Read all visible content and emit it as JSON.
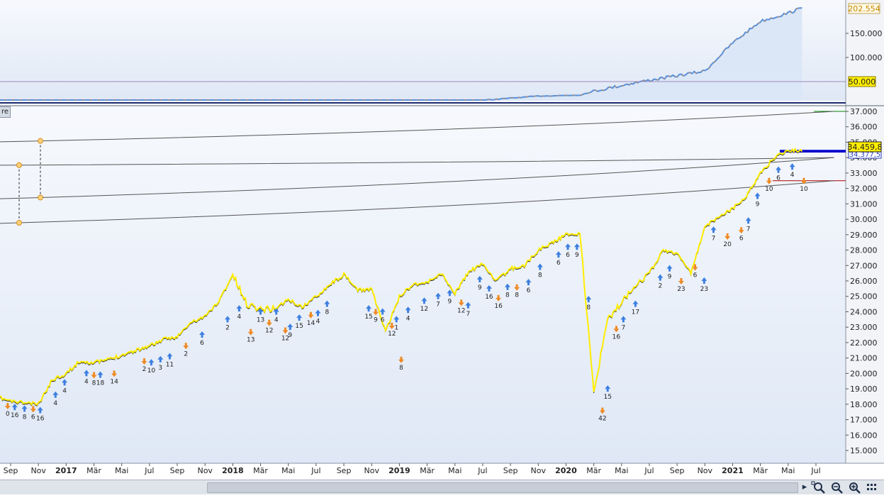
{
  "window": {
    "tab_label": "re"
  },
  "price_box": {
    "upper_current": "202.554",
    "upper_threshold": "50.000",
    "main_current": "34.459,8",
    "main_secondary": "34.377,5"
  },
  "toolbar": {
    "scroll_right_icon": "triangle-right-icon",
    "zoom_fit_icon": "zoom-fit-icon",
    "zoom_out_icon": "zoom-out-icon",
    "zoom_in_icon": "zoom-in-icon",
    "more_icon": "grid-icon"
  },
  "colors": {
    "price_line": "#ffee00",
    "upper_fill": "#dbe7f7",
    "upper_line": "#5b8fd6",
    "buy_arrow": "#3d7fe0",
    "sell_arrow": "#f08a24",
    "bg_top": "#f6f8fc",
    "bg_bottom": "#dfe8f6"
  },
  "chart_data": [
    {
      "type": "area",
      "name": "upper-panel",
      "y_ticks": [
        "150.000",
        "100.000",
        "50.000"
      ],
      "y_tick_values": [
        150000,
        100000,
        50000
      ],
      "threshold": 50000,
      "current": 202554,
      "x": [
        "2016-08",
        "2017-06",
        "2018-06",
        "2019-06",
        "2019-11",
        "2020-02",
        "2020-03",
        "2020-06",
        "2020-09",
        "2020-11",
        "2021-01",
        "2021-03",
        "2021-05",
        "2021-06"
      ],
      "values": [
        1200,
        3500,
        5000,
        9000,
        20000,
        22000,
        30000,
        48000,
        62000,
        72000,
        130000,
        175000,
        192000,
        202554
      ]
    },
    {
      "type": "line",
      "name": "price-panel",
      "y_ticks": [
        "37.000",
        "36.000",
        "35.000",
        "34.000",
        "33.000",
        "32.000",
        "31.000",
        "30.000",
        "29.000",
        "28.000",
        "27.000",
        "26.000",
        "25.000",
        "24.000",
        "23.000",
        "22.000",
        "21.000",
        "20.000",
        "19.000",
        "18.000",
        "17.000",
        "16.000",
        "15.000"
      ],
      "y_tick_values": [
        37000,
        36000,
        35000,
        34000,
        33000,
        32000,
        31000,
        30000,
        29000,
        28000,
        27000,
        26000,
        25000,
        24000,
        23000,
        22000,
        21000,
        20000,
        19000,
        18000,
        17000,
        16000,
        15000
      ],
      "x_labels": [
        {
          "label": "Sep",
          "bold": false
        },
        {
          "label": "Nov",
          "bold": false
        },
        {
          "label": "2017",
          "bold": true
        },
        {
          "label": "Mär",
          "bold": false
        },
        {
          "label": "Mai",
          "bold": false
        },
        {
          "label": "Jul",
          "bold": false
        },
        {
          "label": "Sep",
          "bold": false
        },
        {
          "label": "Nov",
          "bold": false
        },
        {
          "label": "2018",
          "bold": true
        },
        {
          "label": "Mär",
          "bold": false
        },
        {
          "label": "Mai",
          "bold": false
        },
        {
          "label": "Jul",
          "bold": false
        },
        {
          "label": "Sep",
          "bold": false
        },
        {
          "label": "Nov",
          "bold": false
        },
        {
          "label": "2019",
          "bold": true
        },
        {
          "label": "Mär",
          "bold": false
        },
        {
          "label": "Mai",
          "bold": false
        },
        {
          "label": "Jul",
          "bold": false
        },
        {
          "label": "Sep",
          "bold": false
        },
        {
          "label": "Nov",
          "bold": false
        },
        {
          "label": "2020",
          "bold": true
        },
        {
          "label": "Mär",
          "bold": false
        },
        {
          "label": "Mai",
          "bold": false
        },
        {
          "label": "Jul",
          "bold": false
        },
        {
          "label": "Sep",
          "bold": false
        },
        {
          "label": "Nov",
          "bold": false
        },
        {
          "label": "2021",
          "bold": true
        },
        {
          "label": "Mär",
          "bold": false
        },
        {
          "label": "Mai",
          "bold": false
        },
        {
          "label": "Jul",
          "bold": false
        }
      ],
      "x_label_dates": [
        "2016-09",
        "2016-11",
        "2017-01",
        "2017-03",
        "2017-05",
        "2017-07",
        "2017-09",
        "2017-11",
        "2018-01",
        "2018-03",
        "2018-05",
        "2018-07",
        "2018-09",
        "2018-11",
        "2019-01",
        "2019-03",
        "2019-05",
        "2019-07",
        "2019-09",
        "2019-11",
        "2020-01",
        "2020-03",
        "2020-05",
        "2020-07",
        "2020-09",
        "2020-11",
        "2021-01",
        "2021-03",
        "2021-05",
        "2021-07"
      ],
      "series": [
        {
          "x": [
            "2016-08",
            "2016-09",
            "2016-10",
            "2016-11",
            "2016-12",
            "2017-01",
            "2017-02",
            "2017-03",
            "2017-04",
            "2017-05",
            "2017-06",
            "2017-07",
            "2017-08",
            "2017-09",
            "2017-10",
            "2017-11",
            "2017-12",
            "2018-01",
            "2018-02",
            "2018-03",
            "2018-04",
            "2018-05",
            "2018-06",
            "2018-07",
            "2018-08",
            "2018-09",
            "2018-10",
            "2018-11",
            "2018-12",
            "2019-01",
            "2019-02",
            "2019-03",
            "2019-04",
            "2019-05",
            "2019-06",
            "2019-07",
            "2019-08",
            "2019-09",
            "2019-10",
            "2019-11",
            "2019-12",
            "2020-01",
            "2020-02",
            "2020-03",
            "2020-04",
            "2020-05",
            "2020-06",
            "2020-07",
            "2020-08",
            "2020-09",
            "2020-10",
            "2020-11",
            "2020-12",
            "2021-01",
            "2021-02",
            "2021-03",
            "2021-04",
            "2021-05",
            "2021-06"
          ],
          "values": [
            18500,
            18200,
            18100,
            18000,
            19600,
            20000,
            20800,
            20700,
            20900,
            21200,
            21500,
            21800,
            22200,
            22400,
            23300,
            23700,
            24700,
            26400,
            24500,
            24200,
            24200,
            24800,
            24300,
            25000,
            25800,
            26400,
            25400,
            25500,
            22700,
            25000,
            25800,
            25900,
            26500,
            25200,
            26600,
            27100,
            26000,
            26800,
            27000,
            28000,
            28500,
            29000,
            29100,
            18800,
            23500,
            24600,
            25800,
            26500,
            28000,
            27800,
            26500,
            29500,
            30200,
            30700,
            31500,
            33000,
            34000,
            34500,
            34400
          ]
        }
      ],
      "ylim": [
        14500,
        37400
      ],
      "grid": false,
      "horizontal_lines": [
        {
          "value": 34377.5,
          "color": "#0000cc"
        },
        {
          "value": 34459.8,
          "color": "#0000cc"
        },
        {
          "value": 32500,
          "color": "#aa0000"
        },
        {
          "value": 37000,
          "color": "#008800"
        }
      ],
      "trend_curves": [
        {
          "x": [
            "2016-08",
            "2021-06"
          ],
          "values": [
            35000,
            37000
          ]
        },
        {
          "x": [
            "2016-08",
            "2021-06"
          ],
          "values": [
            33500,
            34000
          ]
        },
        {
          "x": [
            "2016-08",
            "2021-06"
          ],
          "values": [
            31300,
            34000
          ]
        },
        {
          "x": [
            "2016-08",
            "2021-06"
          ],
          "values": [
            29700,
            32500
          ]
        }
      ],
      "signals": [
        {
          "date": "2016-08-25",
          "value": 17900,
          "label": "0",
          "dir": "down"
        },
        {
          "date": "2016-09-10",
          "value": 17800,
          "label": "16",
          "dir": "up"
        },
        {
          "date": "2016-10-01",
          "value": 17700,
          "label": "8",
          "dir": "up"
        },
        {
          "date": "2016-10-20",
          "value": 17700,
          "label": "6",
          "dir": "down"
        },
        {
          "date": "2016-11-05",
          "value": 17600,
          "label": "16",
          "dir": "up"
        },
        {
          "date": "2016-12-08",
          "value": 18600,
          "label": "4",
          "dir": "up"
        },
        {
          "date": "2016-12-28",
          "value": 19400,
          "label": "4",
          "dir": "up"
        },
        {
          "date": "2017-02-15",
          "value": 20000,
          "label": "4",
          "dir": "up"
        },
        {
          "date": "2017-03-01",
          "value": 19900,
          "label": "8",
          "dir": "down"
        },
        {
          "date": "2017-03-15",
          "value": 19900,
          "label": "18",
          "dir": "up"
        },
        {
          "date": "2017-04-15",
          "value": 20000,
          "label": "14",
          "dir": "down"
        },
        {
          "date": "2017-06-20",
          "value": 20800,
          "label": "2",
          "dir": "down"
        },
        {
          "date": "2017-07-05",
          "value": 20700,
          "label": "10",
          "dir": "up"
        },
        {
          "date": "2017-07-25",
          "value": 20900,
          "label": "3",
          "dir": "up"
        },
        {
          "date": "2017-08-15",
          "value": 21100,
          "label": "11",
          "dir": "up"
        },
        {
          "date": "2017-09-20",
          "value": 21800,
          "label": "2",
          "dir": "down"
        },
        {
          "date": "2017-10-25",
          "value": 22500,
          "label": "6",
          "dir": "up"
        },
        {
          "date": "2017-12-20",
          "value": 23500,
          "label": "2",
          "dir": "up"
        },
        {
          "date": "2018-01-15",
          "value": 24200,
          "label": "4",
          "dir": "up"
        },
        {
          "date": "2018-02-10",
          "value": 22700,
          "label": "13",
          "dir": "down"
        },
        {
          "date": "2018-03-01",
          "value": 24000,
          "label": "13",
          "dir": "up"
        },
        {
          "date": "2018-03-20",
          "value": 23300,
          "label": "12",
          "dir": "down"
        },
        {
          "date": "2018-04-05",
          "value": 24000,
          "label": "4",
          "dir": "up"
        },
        {
          "date": "2018-04-25",
          "value": 22800,
          "label": "12",
          "dir": "down"
        },
        {
          "date": "2018-05-05",
          "value": 23000,
          "label": "9",
          "dir": "up"
        },
        {
          "date": "2018-05-25",
          "value": 23600,
          "label": "15",
          "dir": "up"
        },
        {
          "date": "2018-06-20",
          "value": 23800,
          "label": "14",
          "dir": "down"
        },
        {
          "date": "2018-07-05",
          "value": 23900,
          "label": "4",
          "dir": "up"
        },
        {
          "date": "2018-07-25",
          "value": 24500,
          "label": "8",
          "dir": "up"
        },
        {
          "date": "2018-10-25",
          "value": 24200,
          "label": "15",
          "dir": "up"
        },
        {
          "date": "2018-11-10",
          "value": 24000,
          "label": "9",
          "dir": "down"
        },
        {
          "date": "2018-11-25",
          "value": 24000,
          "label": "6",
          "dir": "up"
        },
        {
          "date": "2018-12-15",
          "value": 23100,
          "label": "12",
          "dir": "down"
        },
        {
          "date": "2018-12-25",
          "value": 23500,
          "label": "1",
          "dir": "up"
        },
        {
          "date": "2019-01-05",
          "value": 20900,
          "label": "8",
          "dir": "down"
        },
        {
          "date": "2019-01-20",
          "value": 24100,
          "label": "4",
          "dir": "up"
        },
        {
          "date": "2019-02-25",
          "value": 24700,
          "label": "12",
          "dir": "up"
        },
        {
          "date": "2019-03-25",
          "value": 25000,
          "label": "7",
          "dir": "up"
        },
        {
          "date": "2019-04-20",
          "value": 25200,
          "label": "9",
          "dir": "up"
        },
        {
          "date": "2019-05-15",
          "value": 24600,
          "label": "12",
          "dir": "down"
        },
        {
          "date": "2019-05-30",
          "value": 24400,
          "label": "7",
          "dir": "up"
        },
        {
          "date": "2019-06-25",
          "value": 26100,
          "label": "9",
          "dir": "up"
        },
        {
          "date": "2019-07-15",
          "value": 25500,
          "label": "16",
          "dir": "up"
        },
        {
          "date": "2019-08-05",
          "value": 24900,
          "label": "16",
          "dir": "down"
        },
        {
          "date": "2019-08-25",
          "value": 25600,
          "label": "8",
          "dir": "up"
        },
        {
          "date": "2019-09-15",
          "value": 25600,
          "label": "8",
          "dir": "down"
        },
        {
          "date": "2019-10-10",
          "value": 25900,
          "label": "6",
          "dir": "up"
        },
        {
          "date": "2019-11-05",
          "value": 26900,
          "label": "8",
          "dir": "up"
        },
        {
          "date": "2019-12-15",
          "value": 27700,
          "label": "6",
          "dir": "up"
        },
        {
          "date": "2020-01-05",
          "value": 28200,
          "label": "6",
          "dir": "up"
        },
        {
          "date": "2020-01-25",
          "value": 28200,
          "label": "9",
          "dir": "up"
        },
        {
          "date": "2020-02-20",
          "value": 24800,
          "label": "8",
          "dir": "up"
        },
        {
          "date": "2020-03-20",
          "value": 17600,
          "label": "42",
          "dir": "down"
        },
        {
          "date": "2020-04-01",
          "value": 19000,
          "label": "15",
          "dir": "up"
        },
        {
          "date": "2020-04-20",
          "value": 22900,
          "label": "16",
          "dir": "down"
        },
        {
          "date": "2020-05-05",
          "value": 23500,
          "label": "7",
          "dir": "up"
        },
        {
          "date": "2020-06-01",
          "value": 24500,
          "label": "17",
          "dir": "up"
        },
        {
          "date": "2020-07-25",
          "value": 26200,
          "label": "2",
          "dir": "up"
        },
        {
          "date": "2020-08-15",
          "value": 26800,
          "label": "9",
          "dir": "up"
        },
        {
          "date": "2020-09-10",
          "value": 26000,
          "label": "23",
          "dir": "down"
        },
        {
          "date": "2020-10-10",
          "value": 26900,
          "label": "6",
          "dir": "down"
        },
        {
          "date": "2020-10-30",
          "value": 26000,
          "label": "23",
          "dir": "up"
        },
        {
          "date": "2020-11-20",
          "value": 29300,
          "label": "7",
          "dir": "up"
        },
        {
          "date": "2020-12-20",
          "value": 28900,
          "label": "20",
          "dir": "down"
        },
        {
          "date": "2021-01-20",
          "value": 29300,
          "label": "6",
          "dir": "down"
        },
        {
          "date": "2021-02-05",
          "value": 29900,
          "label": "7",
          "dir": "up"
        },
        {
          "date": "2021-02-25",
          "value": 31500,
          "label": "9",
          "dir": "up"
        },
        {
          "date": "2021-03-20",
          "value": 32500,
          "label": "10",
          "dir": "down"
        },
        {
          "date": "2021-04-10",
          "value": 33200,
          "label": "6",
          "dir": "up"
        },
        {
          "date": "2021-05-10",
          "value": 33400,
          "label": "4",
          "dir": "up"
        },
        {
          "date": "2021-06-05",
          "value": 32500,
          "label": "10",
          "dir": "down"
        }
      ]
    }
  ]
}
